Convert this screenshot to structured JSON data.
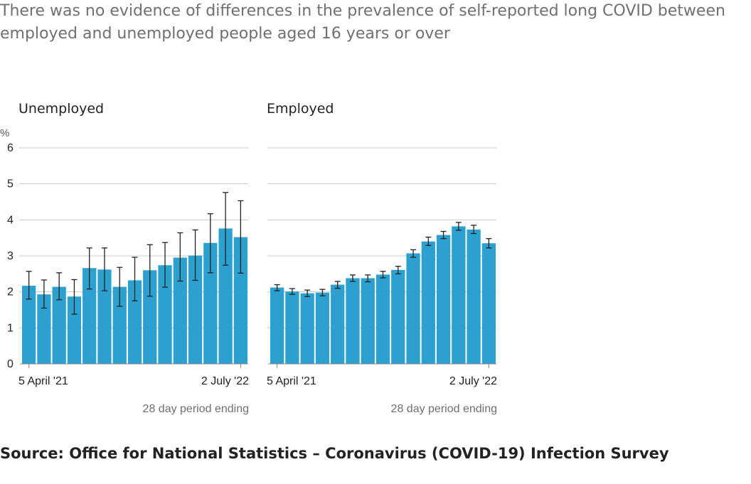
{
  "header": {
    "subtitle": "There was no evidence of differences in the prevalence of self-reported long COVID between employed and unemployed people aged 16 years or over"
  },
  "footer": {
    "source": "Source: Office for National Statistics – Coronavirus (COVID-19) Infection Survey"
  },
  "colors": {
    "bar": "#2ca1cf",
    "grid": "#c8c8c8",
    "error": "#222222"
  },
  "chart_data": [
    {
      "type": "bar",
      "title": "Unemployed",
      "ylabel": "%",
      "xlabel": "28 day period ending",
      "ylim": [
        0,
        6
      ],
      "yticks": [
        0,
        1,
        2,
        3,
        4,
        5,
        6
      ],
      "xtick_labels": [
        "5 April '21",
        "2 July '22"
      ],
      "values": [
        2.17,
        1.93,
        2.14,
        1.87,
        2.66,
        2.62,
        2.14,
        2.32,
        2.6,
        2.74,
        2.95,
        3.01,
        3.36,
        3.76,
        3.52
      ],
      "lower": [
        1.8,
        1.55,
        1.78,
        1.38,
        2.08,
        2.03,
        1.6,
        1.75,
        1.88,
        2.13,
        2.3,
        2.32,
        2.53,
        2.74,
        2.52
      ],
      "upper": [
        2.57,
        2.33,
        2.53,
        2.34,
        3.22,
        3.22,
        2.68,
        2.96,
        3.31,
        3.37,
        3.64,
        3.72,
        4.17,
        4.76,
        4.53
      ]
    },
    {
      "type": "bar",
      "title": "Employed",
      "ylabel": "",
      "xlabel": "28 day period ending",
      "ylim": [
        0,
        6
      ],
      "yticks": [
        0,
        1,
        2,
        3,
        4,
        5,
        6
      ],
      "xtick_labels": [
        "5 April '21",
        "2 July '22"
      ],
      "values": [
        2.12,
        2.01,
        1.96,
        1.98,
        2.2,
        2.38,
        2.38,
        2.48,
        2.61,
        3.07,
        3.4,
        3.58,
        3.82,
        3.73,
        3.35
      ],
      "lower": [
        2.03,
        1.93,
        1.87,
        1.89,
        2.1,
        2.29,
        2.28,
        2.39,
        2.5,
        2.96,
        3.29,
        3.48,
        3.71,
        3.62,
        3.22
      ],
      "upper": [
        2.2,
        2.09,
        2.05,
        2.07,
        2.29,
        2.47,
        2.47,
        2.57,
        2.71,
        3.17,
        3.52,
        3.68,
        3.93,
        3.85,
        3.48
      ]
    }
  ]
}
